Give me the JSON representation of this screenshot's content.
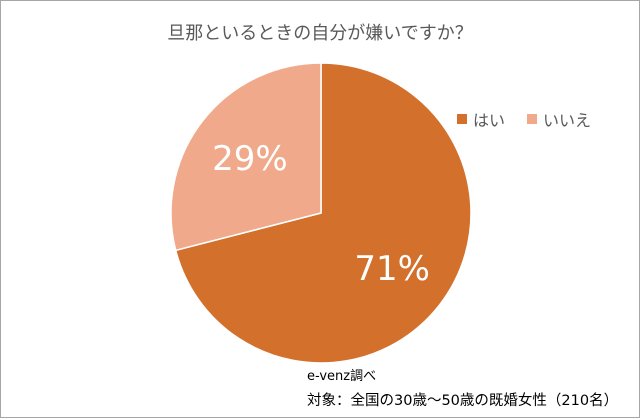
{
  "chart_data": {
    "type": "pie",
    "title": "旦那といるときの自分が嫌いですか？",
    "categories": [
      "はい",
      "いいえ"
    ],
    "values": [
      71,
      29
    ],
    "data_labels": [
      "71%",
      "29%"
    ],
    "colors": [
      "#D2702C",
      "#F0A98A"
    ],
    "legend_position": "right",
    "start_angle": "top, clockwise"
  },
  "notes": {
    "source": "e-venz調べ",
    "subject": "対象：全国の30歳〜50歳の既婚女性（210名）"
  }
}
